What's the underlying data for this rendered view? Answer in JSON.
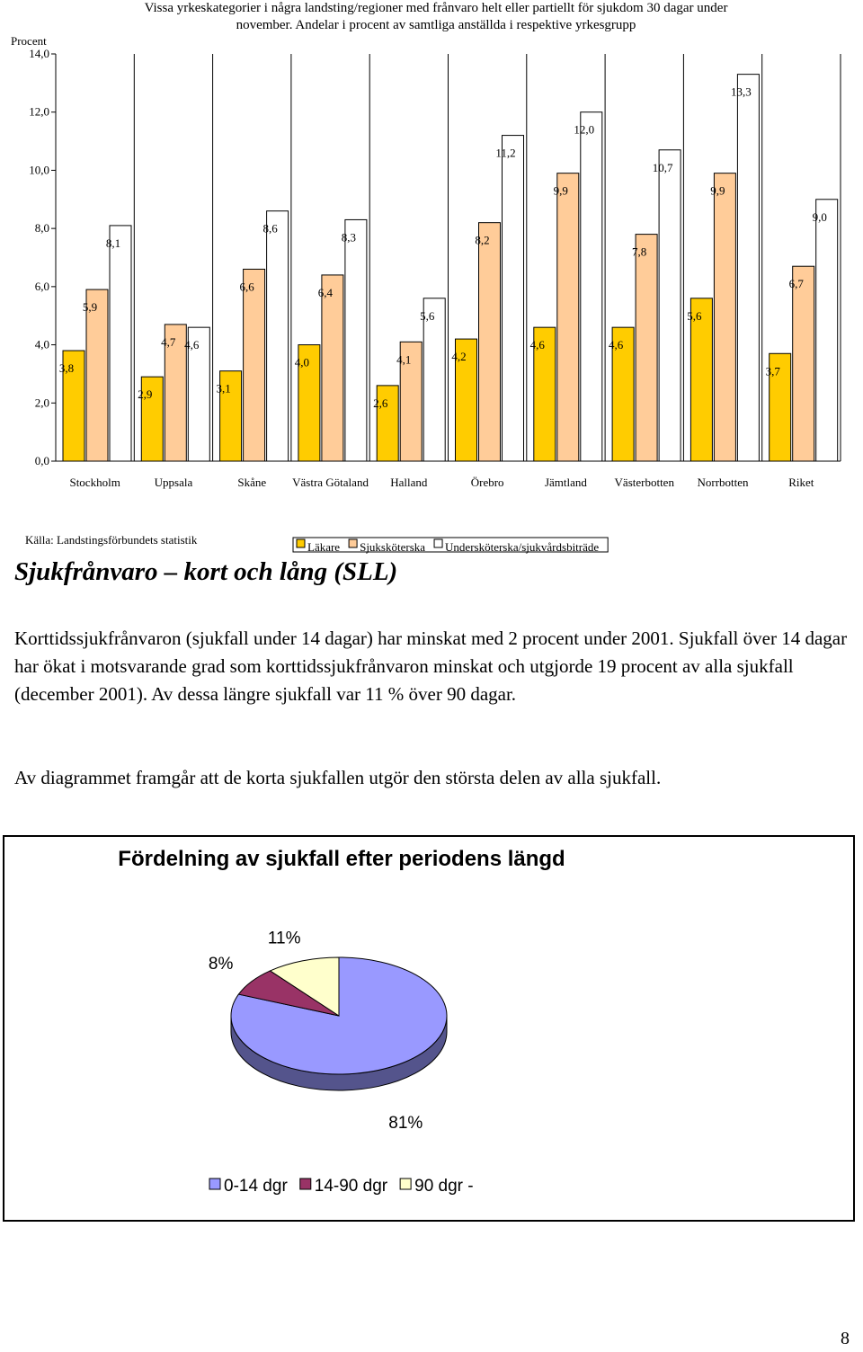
{
  "chart_data": [
    {
      "type": "bar",
      "title": "Vissa yrkeskategorier i några landsting/regioner med frånvaro helt eller partiellt för sjukdom 30 dagar under november. Andelar i procent av samtliga anställda i respektive yrkesgrupp",
      "y_label": "Procent",
      "source": "Källa: Landstingsförbundets statistik",
      "categories": [
        "Stockholm",
        "Uppsala",
        "Skåne",
        "Västra Götaland",
        "Halland",
        "Örebro",
        "Jämtland",
        "Västerbotten",
        "Norrbotten",
        "Riket"
      ],
      "series": [
        {
          "name": "Läkare",
          "color": "#ffcc00",
          "values": [
            3.8,
            2.9,
            3.1,
            4.0,
            2.6,
            4.2,
            4.6,
            4.6,
            5.6,
            3.7
          ],
          "value_labels": [
            "3,8",
            "2,9",
            "3,1",
            "4,0",
            "2,6",
            "4,2",
            "4,6",
            "4,6",
            "5,6",
            "3,7"
          ]
        },
        {
          "name": "Sjuksköterska",
          "color": "#ffcc99",
          "values": [
            5.9,
            4.7,
            6.6,
            6.4,
            4.1,
            8.2,
            9.9,
            7.8,
            9.9,
            6.7
          ],
          "value_labels": [
            "5,9",
            "4,7",
            "6,6",
            "6,4",
            "4,1",
            "8,2",
            "9,9",
            "7,8",
            "9,9",
            "6,7"
          ]
        },
        {
          "name": "Undersköterska/sjukvårdsbiträde",
          "color": "#ffffff",
          "values": [
            8.1,
            4.6,
            8.6,
            8.3,
            5.6,
            11.2,
            12.0,
            10.7,
            13.3,
            9.0
          ],
          "value_labels": [
            "8,1",
            "4,6",
            "8,6",
            "8,3",
            "5,6",
            "11,2",
            "12,0",
            "10,7",
            "13,3",
            "9,0"
          ]
        }
      ],
      "ylim": [
        0,
        14
      ],
      "yticks": [
        {
          "value": 0,
          "label": "0,0"
        },
        {
          "value": 2,
          "label": "2,0"
        },
        {
          "value": 4,
          "label": "4,0"
        },
        {
          "value": 6,
          "label": "6,0"
        },
        {
          "value": 8,
          "label": "8,0"
        },
        {
          "value": 10,
          "label": "10,0"
        },
        {
          "value": 12,
          "label": "12,0"
        },
        {
          "value": 14,
          "label": "14,0"
        }
      ],
      "grid": true
    },
    {
      "type": "pie",
      "title": "Fördelning av sjukfall efter periodens längd",
      "categories": [
        "0-14 dgr",
        "14-90 dgr",
        "90 dgr -"
      ],
      "values": [
        81,
        8,
        11
      ],
      "value_labels": [
        "81%",
        "8%",
        "11%"
      ],
      "colors": [
        "#9999ff",
        "#993366",
        "#ffffcc"
      ],
      "legend": "bottom"
    }
  ],
  "document": {
    "heading": "Sjukfrånvaro – kort och lång (SLL)",
    "paragraphs": [
      "Korttidssjukfrånvaron (sjukfall under 14 dagar) har minskat med 2 procent under 2001. Sjukfall över 14 dagar har ökat i motsvarande grad som korttidssjukfrånvaron minskat och utgjorde 19 procent av alla sjukfall (december 2001). Av dessa längre sjukfall var 11 % över 90 dagar.",
      "Av diagrammet framgår att de korta sjukfallen utgör den största delen av alla sjukfall."
    ],
    "page_number": "8"
  }
}
